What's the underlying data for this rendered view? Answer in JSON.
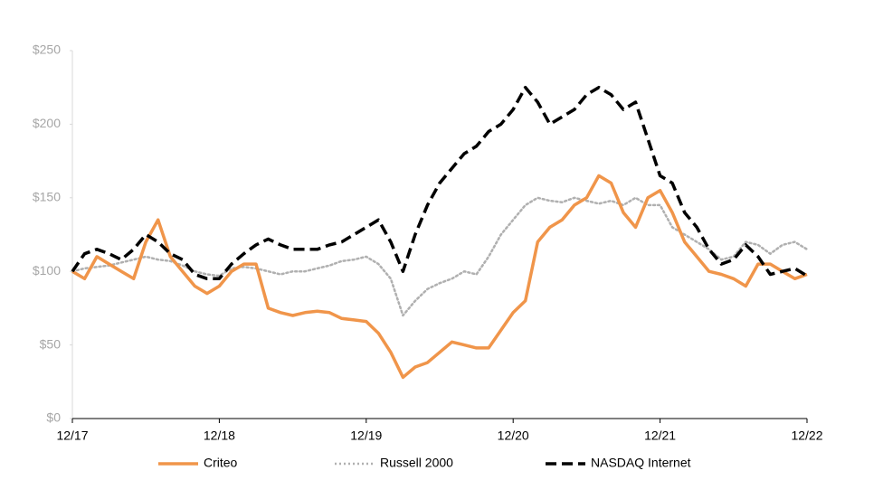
{
  "chart_data": {
    "type": "line",
    "categories": [
      "12/17",
      null,
      null,
      null,
      null,
      null,
      null,
      null,
      null,
      null,
      null,
      null,
      "12/18",
      null,
      null,
      null,
      null,
      null,
      null,
      null,
      null,
      null,
      null,
      null,
      "12/19",
      null,
      null,
      null,
      null,
      null,
      null,
      null,
      null,
      null,
      null,
      null,
      "12/20",
      null,
      null,
      null,
      null,
      null,
      null,
      null,
      null,
      null,
      null,
      null,
      "12/21",
      null,
      null,
      null,
      null,
      null,
      null,
      null,
      null,
      null,
      null,
      null,
      "12/22"
    ],
    "series": [
      {
        "name": "Criteo",
        "color": "#f0954a",
        "style": "solid",
        "values": [
          100,
          95,
          110,
          105,
          100,
          95,
          120,
          135,
          110,
          100,
          90,
          85,
          90,
          100,
          105,
          105,
          75,
          72,
          70,
          72,
          73,
          72,
          68,
          67,
          66,
          58,
          45,
          28,
          35,
          38,
          45,
          52,
          50,
          48,
          48,
          60,
          72,
          80,
          120,
          130,
          135,
          145,
          150,
          165,
          160,
          140,
          130,
          150,
          155,
          140,
          120,
          110,
          100,
          98,
          95,
          90,
          105,
          105,
          100,
          95,
          98
        ]
      },
      {
        "name": "Russell 2000",
        "color": "#b0b0b0",
        "style": "dotted",
        "values": [
          100,
          102,
          103,
          104,
          106,
          108,
          110,
          108,
          107,
          104,
          100,
          98,
          97,
          102,
          103,
          102,
          100,
          98,
          100,
          100,
          102,
          104,
          107,
          108,
          110,
          105,
          95,
          70,
          80,
          88,
          92,
          95,
          100,
          98,
          110,
          125,
          135,
          145,
          150,
          148,
          147,
          150,
          148,
          146,
          148,
          145,
          150,
          145,
          145,
          130,
          125,
          120,
          115,
          108,
          110,
          120,
          118,
          112,
          118,
          120,
          115
        ]
      },
      {
        "name": "NASDAQ Internet",
        "color": "#000000",
        "style": "dashed",
        "values": [
          100,
          112,
          115,
          112,
          108,
          115,
          125,
          120,
          112,
          108,
          98,
          95,
          95,
          105,
          112,
          118,
          122,
          118,
          115,
          115,
          115,
          118,
          120,
          125,
          130,
          135,
          120,
          100,
          125,
          145,
          160,
          170,
          180,
          185,
          195,
          200,
          210,
          225,
          215,
          200,
          205,
          210,
          220,
          225,
          220,
          210,
          215,
          190,
          165,
          160,
          140,
          130,
          115,
          105,
          108,
          118,
          110,
          98,
          100,
          102,
          97
        ]
      }
    ],
    "ylim": [
      0,
      250
    ],
    "yticks": [
      {
        "value": 0,
        "label": "$0"
      },
      {
        "value": 50,
        "label": "$50"
      },
      {
        "value": 100,
        "label": "$100"
      },
      {
        "value": 150,
        "label": "$150"
      },
      {
        "value": 200,
        "label": "$200"
      },
      {
        "value": 250,
        "label": "$250"
      }
    ],
    "grid": false,
    "legend": "bottom"
  }
}
